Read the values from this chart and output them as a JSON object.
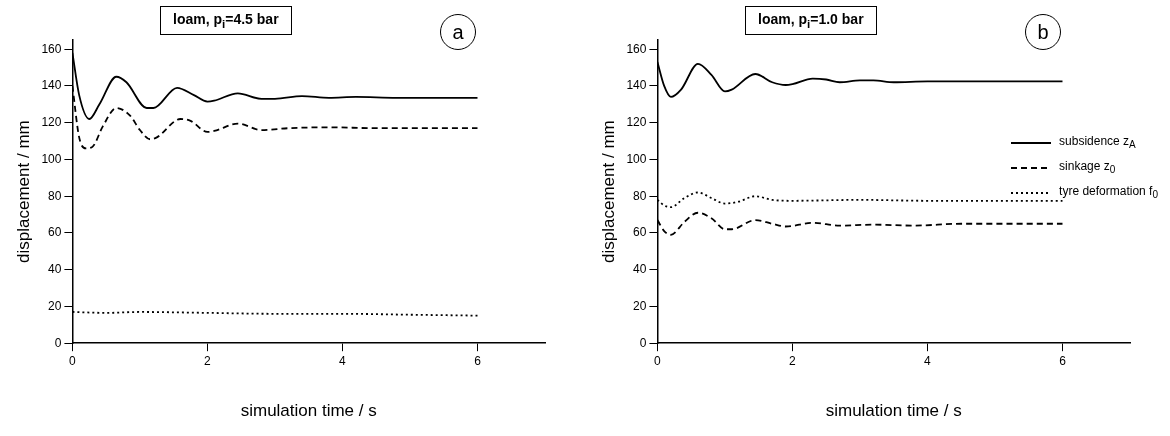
{
  "chart_data": [
    {
      "type": "line",
      "title": "loam, p$_{i}$=4.5 bar",
      "xlabel": "simulation time / s",
      "ylabel": "displacement / mm",
      "xlim": [
        0,
        7
      ],
      "xticks": [
        0,
        2,
        4,
        6
      ],
      "ylim": [
        0,
        165
      ],
      "yticks": [
        0,
        20,
        40,
        60,
        80,
        100,
        120,
        140,
        160
      ],
      "grid": false,
      "legend": false,
      "annotations": [
        "a"
      ],
      "series": [
        {
          "color": "#000000",
          "line_style": "solid",
          "x": [
            0,
            0.1,
            0.25,
            0.4,
            0.65,
            0.8,
            1.1,
            1.2,
            1.55,
            1.8,
            2.0,
            2.1,
            2.45,
            2.8,
            3.0,
            3.4,
            3.8,
            4.2,
            4.8,
            5.5,
            6.0
          ],
          "values": [
            158,
            135,
            122,
            130,
            145,
            142,
            128,
            128,
            139,
            135,
            131.5,
            132,
            136,
            133,
            133,
            134.5,
            133.5,
            134,
            133.5,
            133.5,
            133.5
          ]
        },
        {
          "color": "#000000",
          "line_style": "dashed",
          "x": [
            0,
            0.1,
            0.2,
            0.3,
            0.45,
            0.65,
            0.85,
            1.0,
            1.15,
            1.25,
            1.6,
            1.75,
            2.0,
            2.1,
            2.45,
            2.8,
            3.2,
            3.8,
            4.5,
            5.2,
            6.0
          ],
          "values": [
            140,
            112,
            106,
            107,
            118,
            128,
            124,
            116,
            111,
            112,
            122,
            121,
            115,
            115.5,
            119.5,
            116,
            117,
            117.5,
            117,
            117,
            117
          ]
        },
        {
          "color": "#000000",
          "line_style": "dotted",
          "x": [
            0,
            0.5,
            1,
            2,
            3,
            4,
            5,
            6
          ],
          "values": [
            17,
            16.5,
            17,
            16.5,
            16,
            16,
            15.5,
            15
          ]
        }
      ]
    },
    {
      "type": "line",
      "title": "loam, p$_{i}$=1.0 bar",
      "xlabel": "simulation time / s",
      "ylabel": "displacement / mm",
      "xlim": [
        0,
        7
      ],
      "xticks": [
        0,
        2,
        4,
        6
      ],
      "ylim": [
        0,
        165
      ],
      "yticks": [
        0,
        20,
        40,
        60,
        80,
        100,
        120,
        140,
        160
      ],
      "grid": false,
      "legend": "right",
      "annotations": [
        "b"
      ],
      "series": [
        {
          "name": "subsidence z$_{A}$",
          "color": "#000000",
          "line_style": "solid",
          "x": [
            0,
            0.1,
            0.2,
            0.35,
            0.6,
            0.8,
            1.0,
            1.1,
            1.45,
            1.7,
            1.9,
            2.0,
            2.3,
            2.5,
            2.7,
            3.0,
            3.2,
            3.5,
            4.0,
            5,
            6
          ],
          "values": [
            153,
            140,
            134,
            138,
            152,
            146,
            137,
            138,
            146.5,
            142,
            140.5,
            141,
            144,
            143.5,
            142,
            143,
            143,
            142,
            142.5,
            142.5,
            142.5
          ]
        },
        {
          "name": "sinkage z$_{0}$",
          "color": "#000000",
          "line_style": "dashed",
          "x": [
            0,
            0.1,
            0.2,
            0.4,
            0.6,
            0.8,
            1.0,
            1.1,
            1.45,
            1.7,
            1.9,
            2.3,
            2.7,
            3.2,
            3.8,
            4.5,
            5.2,
            6
          ],
          "values": [
            67,
            61,
            59,
            66,
            71,
            68,
            62,
            62,
            67,
            65,
            63.5,
            65.5,
            64,
            64.5,
            64,
            65,
            65,
            65
          ]
        },
        {
          "name": "tyre deformation f$_{0}$",
          "color": "#000000",
          "line_style": "dotted",
          "x": [
            0,
            0.1,
            0.2,
            0.4,
            0.6,
            0.8,
            1.0,
            1.2,
            1.45,
            1.7,
            2.0,
            3.0,
            4,
            5,
            6
          ],
          "values": [
            78,
            75,
            74,
            79,
            82,
            79,
            76,
            77,
            80,
            78,
            77.5,
            78,
            77.5,
            77.5,
            77.5
          ]
        }
      ]
    }
  ]
}
